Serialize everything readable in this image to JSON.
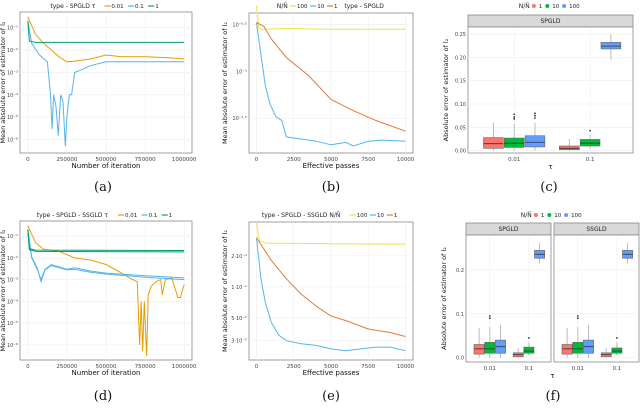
{
  "captions": [
    "(a)",
    "(b)",
    "(c)",
    "(d)",
    "(e)",
    "(f)"
  ],
  "colors": {
    "tau_001": "#E69F00",
    "tau_01": "#56B4E9",
    "tau_1": "#009E73",
    "n100": "#F0E442",
    "n10": "#56B4E9",
    "n1": "#E07B39",
    "box1": "#F8766D",
    "box10": "#00BA38",
    "box100": "#619CFF"
  },
  "chart_data": [
    {
      "id": "a",
      "type": "line",
      "yscale": "log",
      "legend_title": "type - SPGLD  τ",
      "legend": [
        "0.01",
        "0.1",
        "1"
      ],
      "legend_placement": "top",
      "xlabel": "Number of iteration",
      "ylabel": "Mean absolute error of estimator of l₂",
      "xlim": [
        -50000,
        1050000
      ],
      "ylim_log10": [
        -6.6,
        -0.3
      ],
      "xticks": [
        0,
        250000,
        500000,
        750000,
        1000000
      ],
      "xtick_labels": [
        "0",
        "250000",
        "500000",
        "750000",
        "1000000"
      ],
      "yticks_log10": [
        -1,
        -2,
        -3,
        -4,
        -5,
        -6
      ],
      "ytick_labels": [
        "10⁻¹",
        "10⁻²",
        "10⁻³",
        "10⁻⁴",
        "10⁻⁵",
        "10⁻⁶"
      ],
      "series": [
        {
          "name": "0.01",
          "color": "tau_001",
          "x": [
            0,
            50000,
            100000,
            150000,
            200000,
            250000,
            300000,
            400000,
            500000,
            600000,
            750000,
            900000,
            1000000
          ],
          "y": [
            0.3,
            0.05,
            0.02,
            0.01,
            0.005,
            0.003,
            0.0032,
            0.004,
            0.006,
            0.005,
            0.005,
            0.0045,
            0.004
          ]
        },
        {
          "name": "0.1",
          "color": "tau_01",
          "x": [
            0,
            25000,
            75000,
            125000,
            145000,
            155000,
            165000,
            180000,
            195000,
            210000,
            225000,
            240000,
            250000,
            265000,
            280000,
            300000,
            330000,
            400000,
            500000,
            750000,
            1000000
          ],
          "y": [
            0.2,
            0.02,
            0.006,
            0.003,
            0.0001,
            3e-06,
            0.0001,
            3e-05,
            1.5e-06,
            0.0001,
            5e-05,
            5e-07,
            1e-05,
            0.0001,
            0.0001,
            0.001,
            0.0012,
            0.002,
            0.003,
            0.003,
            0.003
          ]
        },
        {
          "name": "1",
          "color": "tau_1",
          "x": [
            0,
            10000,
            50000,
            1000000
          ],
          "y": [
            0.2,
            0.025,
            0.022,
            0.022
          ]
        }
      ]
    },
    {
      "id": "b",
      "type": "line",
      "yscale": "log",
      "legend_title": "N/Ñ",
      "legend": [
        "100",
        "10",
        "1"
      ],
      "legend_suffix": "type - SPGLD",
      "legend_placement": "top",
      "xlabel": "Effective passes",
      "ylabel": "Mean absolute error of estimator of l₂",
      "xlim": [
        -500,
        10500
      ],
      "ylim_log10": [
        -1.87,
        -0.38
      ],
      "xticks": [
        0,
        2500,
        5000,
        7500,
        10000
      ],
      "xtick_labels": [
        "0",
        "2500",
        "5000",
        "7500",
        "10000"
      ],
      "yticks_log10": [
        -0.5,
        -1,
        -1.5
      ],
      "ytick_labels": [
        "10⁻⁰·⁵",
        "10⁻¹",
        "10⁻¹·⁵"
      ],
      "series": [
        {
          "name": "100",
          "color": "n100",
          "x": [
            0,
            150,
            400,
            2000,
            5000,
            10000
          ],
          "y": [
            0.5,
            0.29,
            0.28,
            0.285,
            0.28,
            0.28
          ]
        },
        {
          "name": "10",
          "color": "n10",
          "x": [
            0,
            300,
            600,
            900,
            1300,
            1700,
            2000,
            3000,
            4000,
            5000,
            6000,
            6500,
            7500,
            8500,
            10000
          ],
          "y": [
            0.33,
            0.15,
            0.07,
            0.045,
            0.033,
            0.03,
            0.02,
            0.019,
            0.018,
            0.0165,
            0.0175,
            0.016,
            0.018,
            0.0185,
            0.018
          ]
        },
        {
          "name": "1",
          "color": "n1",
          "x": [
            0,
            500,
            1000,
            2000,
            3500,
            5000,
            6500,
            8000,
            10000
          ],
          "y": [
            0.33,
            0.3,
            0.22,
            0.14,
            0.09,
            0.05,
            0.038,
            0.03,
            0.023
          ]
        }
      ]
    },
    {
      "id": "c",
      "type": "box",
      "facets": [
        "SPGLD"
      ],
      "legend_title": "N/Ñ",
      "legend": [
        "1",
        "10",
        "100"
      ],
      "legend_placement": "top",
      "xlabel": "τ",
      "ylabel": "Absolute error of estimator of l₂",
      "categories": [
        "0.01",
        "0.1"
      ],
      "ylim": [
        -0.005,
        0.265
      ],
      "yticks": [
        0,
        0.05,
        0.1,
        0.15,
        0.2,
        0.25
      ],
      "ytick_labels": [
        "0.00",
        "0.05",
        "0.10",
        "0.15",
        "0.20",
        "0.25"
      ],
      "boxes": [
        [
          [
            {
              "group": "1",
              "lo": 0,
              "q1": 0.005,
              "med": 0.015,
              "q3": 0.028,
              "hi": 0.06,
              "out": []
            },
            {
              "group": "10",
              "lo": 0,
              "q1": 0.007,
              "med": 0.016,
              "q3": 0.027,
              "hi": 0.058,
              "out": [
                0.068,
                0.072,
                0.078
              ]
            },
            {
              "group": "100",
              "lo": 0,
              "q1": 0.008,
              "med": 0.018,
              "q3": 0.032,
              "hi": 0.06,
              "out": [
                0.07,
                0.075,
                0.08
              ]
            }
          ],
          [
            {
              "group": "1",
              "lo": 0,
              "q1": 0.002,
              "med": 0.005,
              "q3": 0.01,
              "hi": 0.025,
              "out": []
            },
            {
              "group": "10",
              "lo": 0.004,
              "q1": 0.01,
              "med": 0.016,
              "q3": 0.024,
              "hi": 0.033,
              "out": [
                0.043
              ]
            },
            {
              "group": "100",
              "lo": 0.195,
              "q1": 0.218,
              "med": 0.224,
              "q3": 0.232,
              "hi": 0.25,
              "out": []
            }
          ]
        ]
      ]
    },
    {
      "id": "d",
      "type": "line",
      "yscale": "log",
      "legend_title": "type - SPGLD - SSGLD  τ",
      "legend": [
        "0.01",
        "0.1",
        "1"
      ],
      "legend_placement": "top",
      "xlabel": "Number of iteration",
      "ylabel": "Mean absolute error of estimator of l₂",
      "xlim": [
        -50000,
        1050000
      ],
      "ylim_log10": [
        -6.7,
        -0.3
      ],
      "xticks": [
        0,
        250000,
        500000,
        750000,
        1000000
      ],
      "xtick_labels": [
        "0",
        "250000",
        "500000",
        "750000",
        "1000000"
      ],
      "yticks_log10": [
        -1,
        -2,
        -3,
        -4,
        -5,
        -6
      ],
      "ytick_labels": [
        "10⁻¹",
        "10⁻²",
        "10⁻³",
        "10⁻⁴",
        "10⁻⁵",
        "10⁻⁶"
      ],
      "series": [
        {
          "name": "0.01",
          "color": "tau_001",
          "x": [
            0,
            50000,
            100000,
            200000,
            300000,
            400000,
            500000,
            600000,
            650000,
            700000,
            715000,
            725000,
            735000,
            745000,
            760000,
            770000,
            790000,
            820000,
            850000,
            860000,
            880000,
            920000,
            960000,
            975000,
            1000000
          ],
          "y": [
            0.3,
            0.05,
            0.025,
            0.02,
            0.01,
            0.008,
            0.005,
            0.002,
            0.0012,
            0.0008,
            1e-06,
            0.0001,
            5e-07,
            0.0001,
            3e-07,
            0.0002,
            0.0005,
            0.0008,
            0.001,
            0.0002,
            0.001,
            0.0012,
            0.00015,
            0.00015,
            0.0006
          ]
        },
        {
          "name": "0.1",
          "color": "tau_01",
          "x": [
            0,
            25000,
            60000,
            85000,
            110000,
            150000,
            250000,
            300000,
            400000,
            500000,
            750000,
            1000000
          ],
          "y": [
            0.2,
            0.01,
            0.003,
            0.001,
            0.003,
            0.005,
            0.003,
            0.0035,
            0.0025,
            0.002,
            0.0015,
            0.0012
          ]
        },
        {
          "name": "0.1",
          "color": "tau_01",
          "x": [
            0,
            25000,
            60000,
            85000,
            110000,
            150000,
            250000,
            300000,
            400000,
            500000,
            750000,
            1000000
          ],
          "y": [
            0.2,
            0.011,
            0.0035,
            0.0008,
            0.0028,
            0.0045,
            0.0028,
            0.003,
            0.0022,
            0.0018,
            0.0013,
            0.001
          ]
        },
        {
          "name": "1",
          "color": "tau_1",
          "x": [
            0,
            10000,
            50000,
            1000000
          ],
          "y": [
            0.2,
            0.027,
            0.023,
            0.022
          ]
        },
        {
          "name": "1",
          "color": "tau_1",
          "x": [
            0,
            10000,
            50000,
            1000000
          ],
          "y": [
            0.2,
            0.024,
            0.02,
            0.019
          ]
        }
      ]
    },
    {
      "id": "e",
      "type": "line",
      "yscale": "log",
      "legend_title": "type - SPGLD - SSGLD  N/Ñ",
      "legend": [
        "100",
        "10",
        "1"
      ],
      "legend_placement": "top",
      "xlabel": "Effective passes",
      "ylabel": "Mean absolute error of estimator of l₂",
      "xlim": [
        -500,
        10500
      ],
      "ylim_log10": [
        -1.71,
        -0.37
      ],
      "xticks": [
        0,
        2500,
        5000,
        7500,
        10000
      ],
      "xtick_labels": [
        "0",
        "2500",
        "5000",
        "7500",
        "10000"
      ],
      "yticks_log10": [
        -0.699,
        -1,
        -1.301,
        -1.523
      ],
      "ytick_labels": [
        "2·10⁻¹",
        "1·10⁻¹",
        "5·10⁻²",
        "3·10⁻²"
      ],
      "series": [
        {
          "name": "100",
          "color": "n100",
          "x": [
            0,
            200,
            700,
            2000,
            5000,
            10000
          ],
          "y": [
            0.42,
            0.28,
            0.265,
            0.265,
            0.262,
            0.26
          ]
        },
        {
          "name": "10",
          "color": "n10",
          "x": [
            0,
            300,
            600,
            1000,
            1500,
            2000,
            3000,
            4000,
            5000,
            6000,
            7000,
            8000,
            9000,
            10000
          ],
          "y": [
            0.3,
            0.12,
            0.07,
            0.045,
            0.034,
            0.03,
            0.028,
            0.027,
            0.025,
            0.024,
            0.025,
            0.026,
            0.026,
            0.024
          ]
        },
        {
          "name": "1",
          "color": "n1",
          "x": [
            0,
            1000,
            2000,
            3000,
            4000,
            5000,
            6000,
            7500,
            9000,
            10000
          ],
          "y": [
            0.3,
            0.18,
            0.12,
            0.085,
            0.065,
            0.052,
            0.047,
            0.039,
            0.036,
            0.033
          ]
        }
      ]
    },
    {
      "id": "f",
      "type": "box",
      "facets": [
        "SPGLD",
        "SSGLD"
      ],
      "legend_title": "N/Ñ",
      "legend": [
        "1",
        "10",
        "100"
      ],
      "legend_placement": "top",
      "xlabel": "τ",
      "ylabel": "Absolute error of estimator of l₂",
      "categories": [
        "0.01",
        "0.1"
      ],
      "ylim": [
        -0.01,
        0.28
      ],
      "yticks": [
        0,
        0.1,
        0.2
      ],
      "ytick_labels": [
        "0.0",
        "0.1",
        "0.2"
      ],
      "boxes": [
        [
          [
            {
              "group": "1",
              "lo": 0,
              "q1": 0.008,
              "med": 0.02,
              "q3": 0.03,
              "hi": 0.068,
              "out": []
            },
            {
              "group": "10",
              "lo": 0,
              "q1": 0.01,
              "med": 0.02,
              "q3": 0.035,
              "hi": 0.07,
              "out": [
                0.09,
                0.095
              ]
            },
            {
              "group": "100",
              "lo": 0,
              "q1": 0.01,
              "med": 0.025,
              "q3": 0.04,
              "hi": 0.075,
              "out": []
            }
          ],
          [
            {
              "group": "1",
              "lo": 0,
              "q1": 0.002,
              "med": 0.007,
              "q3": 0.011,
              "hi": 0.022,
              "out": []
            },
            {
              "group": "10",
              "lo": 0.005,
              "q1": 0.01,
              "med": 0.015,
              "q3": 0.024,
              "hi": 0.035,
              "out": [
                0.045
              ]
            },
            {
              "group": "100",
              "lo": 0.215,
              "q1": 0.227,
              "med": 0.236,
              "q3": 0.245,
              "hi": 0.262,
              "out": []
            }
          ]
        ],
        [
          [
            {
              "group": "1",
              "lo": 0,
              "q1": 0.008,
              "med": 0.02,
              "q3": 0.03,
              "hi": 0.068,
              "out": []
            },
            {
              "group": "10",
              "lo": 0,
              "q1": 0.01,
              "med": 0.02,
              "q3": 0.035,
              "hi": 0.07,
              "out": [
                0.09,
                0.095
              ]
            },
            {
              "group": "100",
              "lo": 0,
              "q1": 0.01,
              "med": 0.025,
              "q3": 0.04,
              "hi": 0.075,
              "out": []
            }
          ],
          [
            {
              "group": "1",
              "lo": 0,
              "q1": 0.002,
              "med": 0.007,
              "q3": 0.011,
              "hi": 0.022,
              "out": []
            },
            {
              "group": "10",
              "lo": 0.005,
              "q1": 0.01,
              "med": 0.015,
              "q3": 0.022,
              "hi": 0.035,
              "out": [
                0.045
              ]
            },
            {
              "group": "100",
              "lo": 0.215,
              "q1": 0.227,
              "med": 0.236,
              "q3": 0.245,
              "hi": 0.262,
              "out": []
            }
          ]
        ]
      ]
    }
  ]
}
